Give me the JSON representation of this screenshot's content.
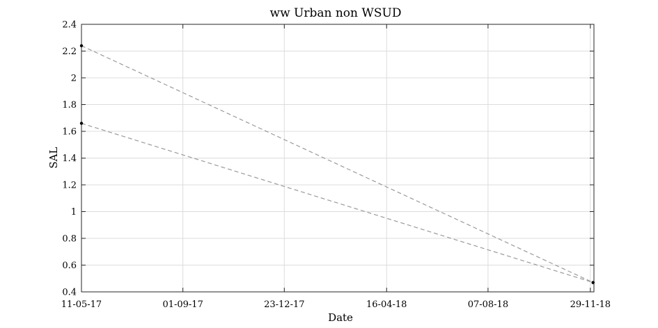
{
  "chart_data": {
    "type": "line",
    "title": "ww Urban non WSUD",
    "xlabel": "Date",
    "ylabel": "SAL",
    "x_ticks": [
      "11-05-17",
      "01-09-17",
      "23-12-17",
      "16-04-18",
      "07-08-18",
      "29-11-18"
    ],
    "xlim": [
      "2017-05-11",
      "2018-12-03"
    ],
    "ylim": [
      0.4,
      2.4
    ],
    "y_ticks": [
      "0.4",
      "0.6",
      "0.8",
      "1",
      "1.2",
      "1.4",
      "1.6",
      "1.8",
      "2",
      "2.2",
      "2.4"
    ],
    "grid": true,
    "line_style": "dashed",
    "line_color": "#9a9a9a",
    "marker_color": "#000000",
    "series": [
      {
        "x": [
          "2017-05-11",
          "2018-12-02"
        ],
        "y": [
          2.24,
          0.47
        ]
      },
      {
        "x": [
          "2017-05-11",
          "2018-12-02"
        ],
        "y": [
          1.66,
          0.47
        ]
      }
    ]
  }
}
